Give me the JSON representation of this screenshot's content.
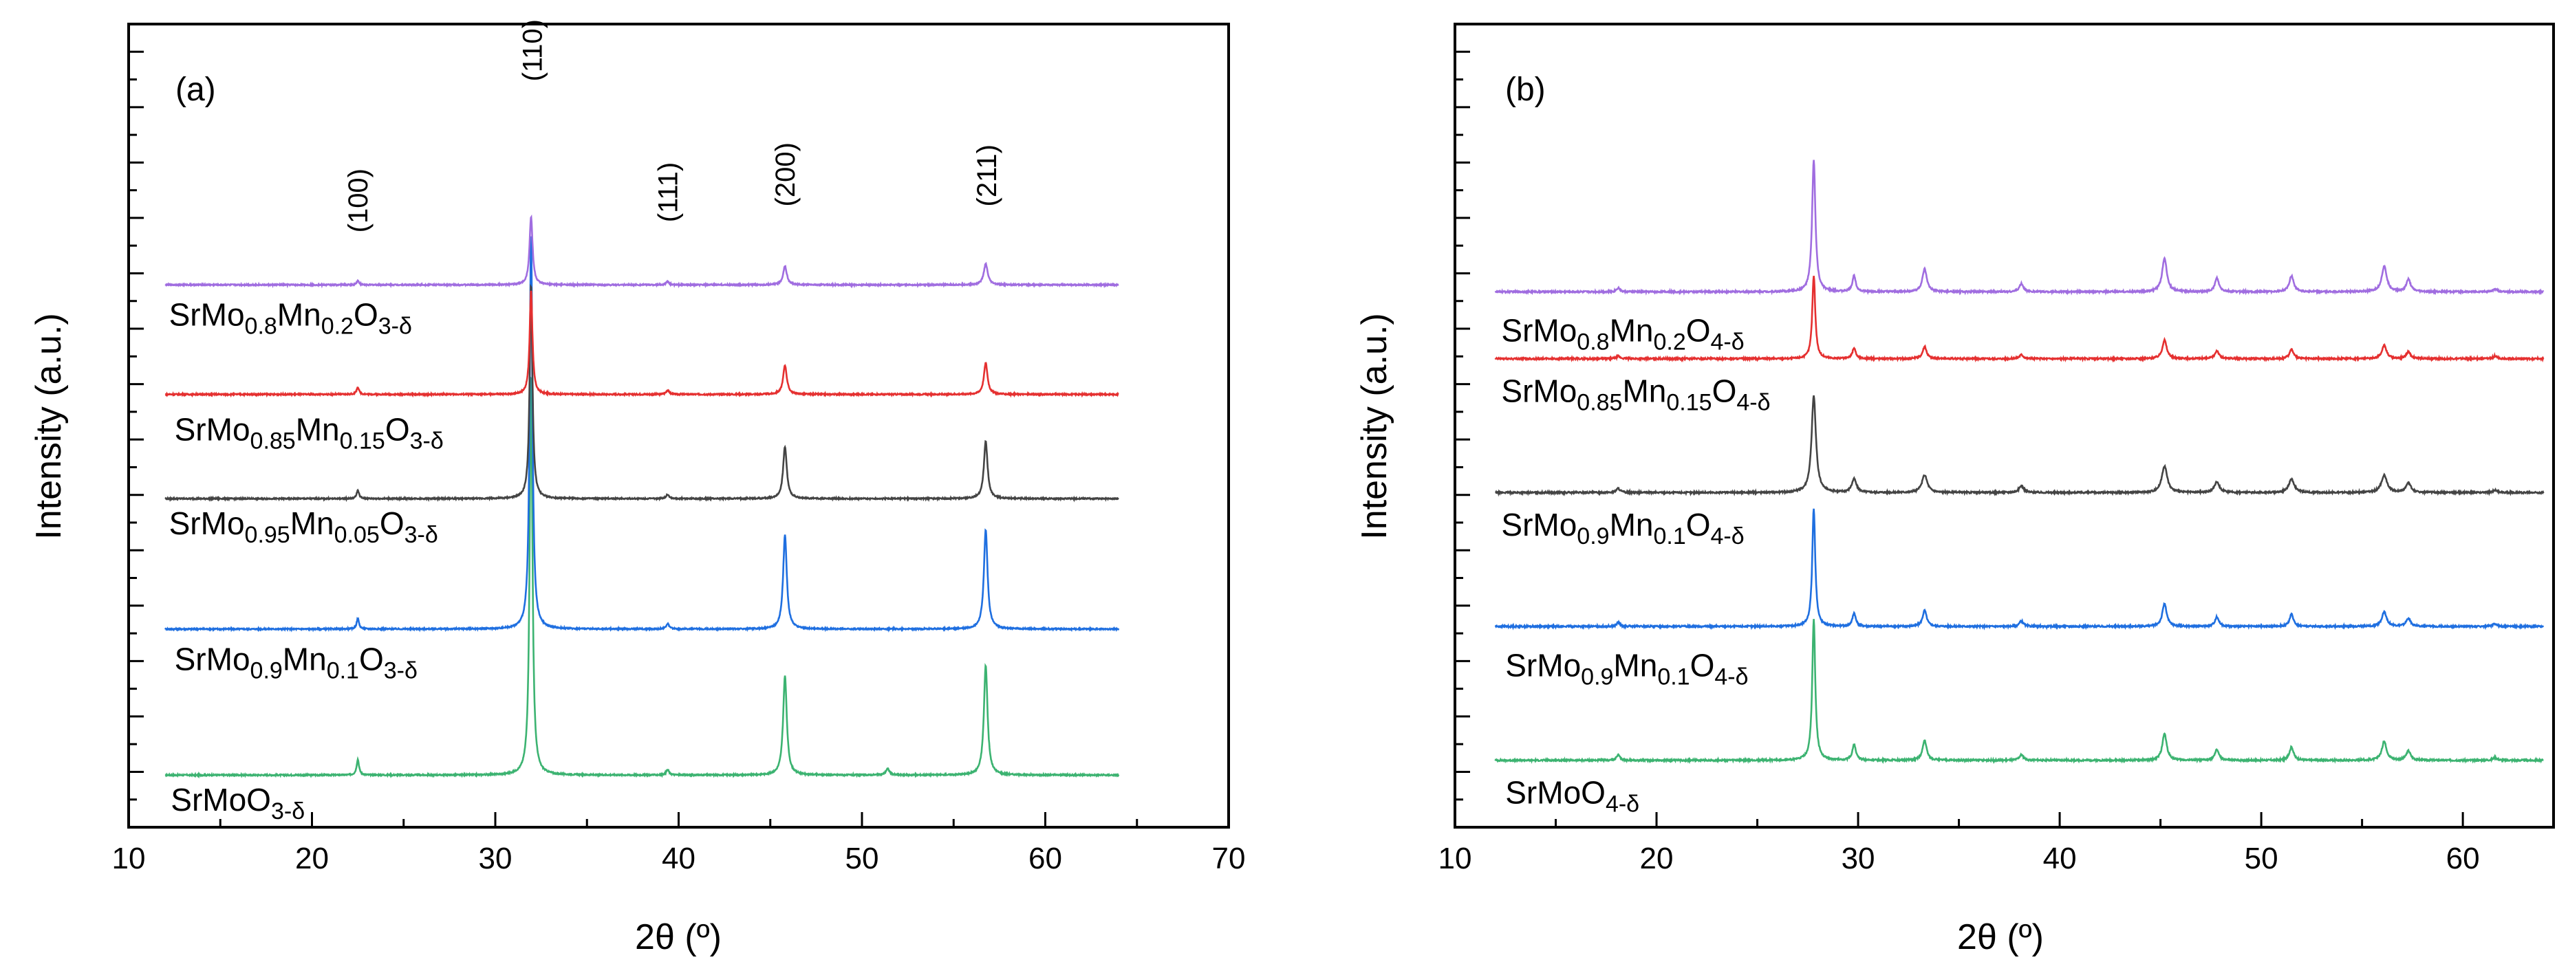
{
  "chart_data": [
    {
      "type": "line",
      "panel_label": "(a)",
      "xlabel": "2θ (º)",
      "ylabel": "Intensity (a.u.)",
      "xlim": [
        10,
        70
      ],
      "xticks": [
        "10",
        "20",
        "30",
        "40",
        "50",
        "60",
        "70"
      ],
      "y_ticks_labeled": false,
      "y_range_au": [
        -0.5,
        7.2
      ],
      "peak_labels": [
        {
          "text": "(100)",
          "x": 22.5
        },
        {
          "text": "(110)",
          "x": 32.0
        },
        {
          "text": "(111)",
          "x": 39.4
        },
        {
          "text": "(200)",
          "x": 45.8
        },
        {
          "text": "(211)",
          "x": 56.8
        }
      ],
      "series": [
        {
          "name": "SrMoO3-δ",
          "label_parts": [
            [
              "SrMoO",
              ""
            ],
            [
              "3-δ",
              "sub"
            ]
          ],
          "color": "#3cb371",
          "baseline": 0.0,
          "label_x": 12.3,
          "label_y": -0.25,
          "x_range": [
            12,
            64
          ],
          "peaks": [
            [
              22.5,
              0.15,
              0.08
            ],
            [
              31.95,
              3.85,
              0.09
            ],
            [
              39.4,
              0.05,
              0.1
            ],
            [
              45.8,
              0.95,
              0.12
            ],
            [
              51.4,
              0.06,
              0.12
            ],
            [
              56.75,
              1.05,
              0.12
            ]
          ]
        },
        {
          "name": "SrMo0.9Mn0.1O3-δ",
          "label_parts": [
            [
              "SrMo",
              ""
            ],
            [
              "0.9",
              "sub"
            ],
            [
              "Mn",
              ""
            ],
            [
              "0.1",
              "sub"
            ],
            [
              "O",
              ""
            ],
            [
              "3-δ",
              "sub"
            ]
          ],
          "color": "#1f6fe0",
          "baseline": 1.4,
          "label_x": 12.5,
          "label_y": 1.1,
          "x_range": [
            12,
            64
          ],
          "peaks": [
            [
              22.5,
              0.1,
              0.08
            ],
            [
              31.95,
              3.8,
              0.09
            ],
            [
              39.4,
              0.05,
              0.1
            ],
            [
              45.8,
              0.9,
              0.12
            ],
            [
              56.75,
              0.95,
              0.12
            ]
          ]
        },
        {
          "name": "SrMo0.95Mn0.05O3-δ",
          "label_parts": [
            [
              "SrMo",
              ""
            ],
            [
              "0.95",
              "sub"
            ],
            [
              "Mn",
              ""
            ],
            [
              "0.05",
              "sub"
            ],
            [
              "O",
              ""
            ],
            [
              "3-δ",
              "sub"
            ]
          ],
          "color": "#444444",
          "baseline": 2.65,
          "label_x": 12.2,
          "label_y": 2.4,
          "x_range": [
            12,
            64
          ],
          "peaks": [
            [
              22.5,
              0.08,
              0.08
            ],
            [
              31.95,
              2.05,
              0.09
            ],
            [
              39.4,
              0.04,
              0.1
            ],
            [
              45.8,
              0.5,
              0.12
            ],
            [
              56.75,
              0.55,
              0.12
            ]
          ]
        },
        {
          "name": "SrMo0.85Mn0.15O3-δ",
          "label_parts": [
            [
              "SrMo",
              ""
            ],
            [
              "0.85",
              "sub"
            ],
            [
              "Mn",
              ""
            ],
            [
              "0.15",
              "sub"
            ],
            [
              "O",
              ""
            ],
            [
              "3-δ",
              "sub"
            ]
          ],
          "color": "#e53030",
          "baseline": 3.65,
          "label_x": 12.5,
          "label_y": 3.3,
          "x_range": [
            12,
            64
          ],
          "peaks": [
            [
              22.5,
              0.07,
              0.08
            ],
            [
              31.95,
              1.0,
              0.09
            ],
            [
              39.4,
              0.04,
              0.1
            ],
            [
              45.8,
              0.28,
              0.12
            ],
            [
              56.75,
              0.3,
              0.12
            ]
          ]
        },
        {
          "name": "SrMo0.8Mn0.2O3-δ",
          "label_parts": [
            [
              "SrMo",
              ""
            ],
            [
              "0.8",
              "sub"
            ],
            [
              "Mn",
              ""
            ],
            [
              "0.2",
              "sub"
            ],
            [
              "O",
              ""
            ],
            [
              "3-δ",
              "sub"
            ]
          ],
          "color": "#a06de0",
          "baseline": 4.7,
          "label_x": 12.2,
          "label_y": 4.4,
          "x_range": [
            12,
            64
          ],
          "peaks": [
            [
              22.5,
              0.04,
              0.08
            ],
            [
              31.95,
              0.65,
              0.1
            ],
            [
              39.4,
              0.03,
              0.1
            ],
            [
              45.8,
              0.18,
              0.12
            ],
            [
              56.75,
              0.2,
              0.13
            ]
          ]
        }
      ]
    },
    {
      "type": "line",
      "panel_label": "(b)",
      "xlabel": "2θ (º)",
      "ylabel": "Intensity (a.u.)",
      "xlim": [
        10,
        64.5
      ],
      "xticks": [
        "10",
        "20",
        "30",
        "40",
        "50",
        "60"
      ],
      "y_ticks_labeled": false,
      "y_range_au": [
        -0.5,
        5.5
      ],
      "series": [
        {
          "name": "SrMoO4-δ",
          "label_parts": [
            [
              "SrMoO",
              ""
            ],
            [
              "4-δ",
              "sub"
            ]
          ],
          "color": "#3cb371",
          "baseline": 0.0,
          "label_x": 12.5,
          "label_y": -0.25,
          "x_range": [
            12,
            64
          ],
          "peaks": [
            [
              18.1,
              0.04,
              0.1
            ],
            [
              27.8,
              1.05,
              0.09
            ],
            [
              29.8,
              0.12,
              0.1
            ],
            [
              33.3,
              0.15,
              0.12
            ],
            [
              38.1,
              0.04,
              0.12
            ],
            [
              45.2,
              0.2,
              0.13
            ],
            [
              47.8,
              0.08,
              0.12
            ],
            [
              51.5,
              0.1,
              0.12
            ],
            [
              56.1,
              0.14,
              0.14
            ],
            [
              57.3,
              0.07,
              0.13
            ],
            [
              61.6,
              0.02,
              0.12
            ]
          ]
        },
        {
          "name": "SrMo0.9Mn0.1O4-δ (blue)",
          "label_parts": [
            [
              "SrMo",
              ""
            ],
            [
              "0.9",
              "sub"
            ],
            [
              "Mn",
              ""
            ],
            [
              "0.1",
              "sub"
            ],
            [
              "O",
              ""
            ],
            [
              "4-δ",
              "sub"
            ]
          ],
          "color": "#1f6fe0",
          "baseline": 1.0,
          "label_x": 12.5,
          "label_y": 0.7,
          "x_range": [
            12,
            64
          ],
          "peaks": [
            [
              18.1,
              0.03,
              0.1
            ],
            [
              27.8,
              0.88,
              0.09
            ],
            [
              29.8,
              0.1,
              0.1
            ],
            [
              33.3,
              0.12,
              0.12
            ],
            [
              38.1,
              0.04,
              0.12
            ],
            [
              45.2,
              0.17,
              0.13
            ],
            [
              47.8,
              0.07,
              0.12
            ],
            [
              51.5,
              0.09,
              0.12
            ],
            [
              56.1,
              0.11,
              0.14
            ],
            [
              57.3,
              0.06,
              0.13
            ],
            [
              61.6,
              0.02,
              0.12
            ]
          ]
        },
        {
          "name": "SrMo0.9Mn0.1O4-δ (black)",
          "label_parts": [
            [
              "SrMo",
              ""
            ],
            [
              "0.9",
              "sub"
            ],
            [
              "Mn",
              ""
            ],
            [
              "0.1",
              "sub"
            ],
            [
              "O",
              ""
            ],
            [
              "4-δ",
              "sub"
            ]
          ],
          "color": "#444444",
          "baseline": 2.0,
          "label_x": 12.3,
          "label_y": 1.75,
          "x_range": [
            12,
            64
          ],
          "peaks": [
            [
              18.1,
              0.03,
              0.12
            ],
            [
              27.8,
              0.72,
              0.13
            ],
            [
              29.8,
              0.1,
              0.14
            ],
            [
              33.3,
              0.13,
              0.16
            ],
            [
              38.1,
              0.05,
              0.14
            ],
            [
              45.2,
              0.2,
              0.16
            ],
            [
              47.8,
              0.08,
              0.15
            ],
            [
              51.5,
              0.1,
              0.16
            ],
            [
              56.1,
              0.13,
              0.17
            ],
            [
              57.3,
              0.07,
              0.15
            ],
            [
              61.6,
              0.02,
              0.12
            ]
          ]
        },
        {
          "name": "SrMo0.85Mn0.15O4-δ",
          "label_parts": [
            [
              "SrMo",
              ""
            ],
            [
              "0.85",
              "sub"
            ],
            [
              "Mn",
              ""
            ],
            [
              "0.15",
              "sub"
            ],
            [
              "O",
              ""
            ],
            [
              "4-δ",
              "sub"
            ]
          ],
          "color": "#e53030",
          "baseline": 3.0,
          "label_x": 12.3,
          "label_y": 2.75,
          "x_range": [
            12,
            64
          ],
          "peaks": [
            [
              18.1,
              0.02,
              0.1
            ],
            [
              27.8,
              0.62,
              0.09
            ],
            [
              29.8,
              0.08,
              0.1
            ],
            [
              33.3,
              0.09,
              0.12
            ],
            [
              38.1,
              0.03,
              0.12
            ],
            [
              45.2,
              0.14,
              0.13
            ],
            [
              47.8,
              0.06,
              0.12
            ],
            [
              51.5,
              0.07,
              0.12
            ],
            [
              56.1,
              0.1,
              0.14
            ],
            [
              57.3,
              0.05,
              0.13
            ],
            [
              61.6,
              0.02,
              0.12
            ]
          ]
        },
        {
          "name": "SrMo0.8Mn0.2O4-δ",
          "label_parts": [
            [
              "SrMo",
              ""
            ],
            [
              "0.8",
              "sub"
            ],
            [
              "Mn",
              ""
            ],
            [
              "0.2",
              "sub"
            ],
            [
              "O",
              ""
            ],
            [
              "4-δ",
              "sub"
            ]
          ],
          "color": "#a06de0",
          "baseline": 3.5,
          "label_x": 12.3,
          "label_y": 3.2,
          "x_range": [
            12,
            64
          ],
          "peaks": [
            [
              18.1,
              0.03,
              0.1
            ],
            [
              27.8,
              0.98,
              0.1
            ],
            [
              29.8,
              0.12,
              0.1
            ],
            [
              33.3,
              0.17,
              0.13
            ],
            [
              38.1,
              0.06,
              0.12
            ],
            [
              45.2,
              0.25,
              0.14
            ],
            [
              47.8,
              0.1,
              0.12
            ],
            [
              51.5,
              0.12,
              0.13
            ],
            [
              56.1,
              0.19,
              0.15
            ],
            [
              57.3,
              0.09,
              0.13
            ],
            [
              61.6,
              0.02,
              0.12
            ]
          ]
        }
      ]
    }
  ]
}
